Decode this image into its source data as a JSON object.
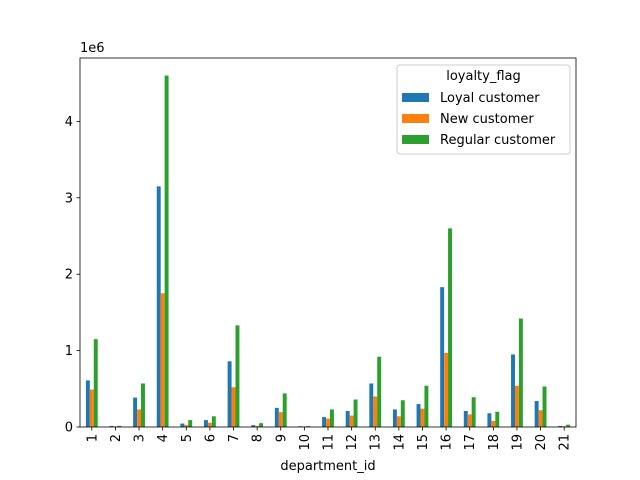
{
  "chart_data": {
    "type": "bar",
    "xlabel": "department_id",
    "ylabel": "",
    "y_offset_text": "1e6",
    "ylim": [
      0,
      4830000
    ],
    "yticks": [
      0,
      1,
      2,
      3,
      4
    ],
    "legend_title": "loyalty_flag",
    "legend_position": "top-right",
    "grid": false,
    "categories": [
      "1",
      "2",
      "3",
      "4",
      "5",
      "6",
      "7",
      "8",
      "9",
      "10",
      "11",
      "12",
      "13",
      "14",
      "15",
      "16",
      "17",
      "18",
      "19",
      "20",
      "21"
    ],
    "series": [
      {
        "name": "Loyal customer",
        "color": "#1f77b4",
        "values": [
          610000,
          14000,
          385000,
          3150000,
          45000,
          90000,
          860000,
          25000,
          250000,
          10000,
          130000,
          210000,
          570000,
          230000,
          300000,
          1830000,
          210000,
          180000,
          950000,
          340000,
          14000
        ]
      },
      {
        "name": "New customer",
        "color": "#ff7f0e",
        "values": [
          490000,
          8000,
          230000,
          1750000,
          27000,
          55000,
          520000,
          15000,
          195000,
          5000,
          110000,
          150000,
          400000,
          140000,
          240000,
          970000,
          165000,
          80000,
          540000,
          220000,
          10000
        ]
      },
      {
        "name": "Regular customer",
        "color": "#2ca02c",
        "values": [
          1150000,
          15000,
          570000,
          4600000,
          90000,
          140000,
          1330000,
          50000,
          440000,
          12000,
          230000,
          360000,
          920000,
          350000,
          540000,
          2600000,
          390000,
          200000,
          1420000,
          530000,
          30000
        ]
      }
    ]
  }
}
